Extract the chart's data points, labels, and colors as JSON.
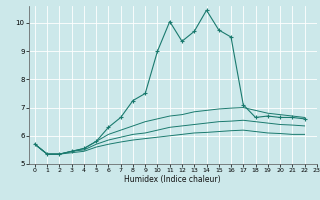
{
  "xlabel": "Humidex (Indice chaleur)",
  "ylabel": "",
  "bg_color": "#cce8ea",
  "line_color": "#1a7a6e",
  "grid_color": "#ffffff",
  "xlim": [
    -0.5,
    23
  ],
  "ylim": [
    5.0,
    10.6
  ],
  "yticks": [
    5,
    6,
    7,
    8,
    9,
    10
  ],
  "xticks": [
    0,
    1,
    2,
    3,
    4,
    5,
    6,
    7,
    8,
    9,
    10,
    11,
    12,
    13,
    14,
    15,
    16,
    17,
    18,
    19,
    20,
    21,
    22,
    23
  ],
  "series": [
    [
      5.7,
      5.35,
      5.35,
      5.45,
      5.55,
      5.8,
      6.3,
      6.65,
      7.25,
      7.5,
      9.0,
      10.05,
      9.35,
      9.7,
      10.45,
      9.75,
      9.5,
      7.1,
      6.65,
      6.7,
      6.65,
      6.65,
      6.6
    ],
    [
      5.7,
      5.35,
      5.35,
      5.45,
      5.55,
      5.8,
      6.05,
      6.2,
      6.35,
      6.5,
      6.6,
      6.7,
      6.75,
      6.85,
      6.9,
      6.95,
      6.98,
      7.0,
      6.9,
      6.8,
      6.75,
      6.7,
      6.65
    ],
    [
      5.7,
      5.35,
      5.35,
      5.45,
      5.5,
      5.7,
      5.85,
      5.95,
      6.05,
      6.1,
      6.2,
      6.3,
      6.35,
      6.4,
      6.45,
      6.5,
      6.52,
      6.55,
      6.5,
      6.45,
      6.4,
      6.38,
      6.35
    ],
    [
      5.7,
      5.35,
      5.35,
      5.4,
      5.45,
      5.6,
      5.7,
      5.78,
      5.85,
      5.9,
      5.95,
      6.0,
      6.05,
      6.1,
      6.12,
      6.15,
      6.18,
      6.2,
      6.15,
      6.1,
      6.08,
      6.05,
      6.05
    ]
  ]
}
